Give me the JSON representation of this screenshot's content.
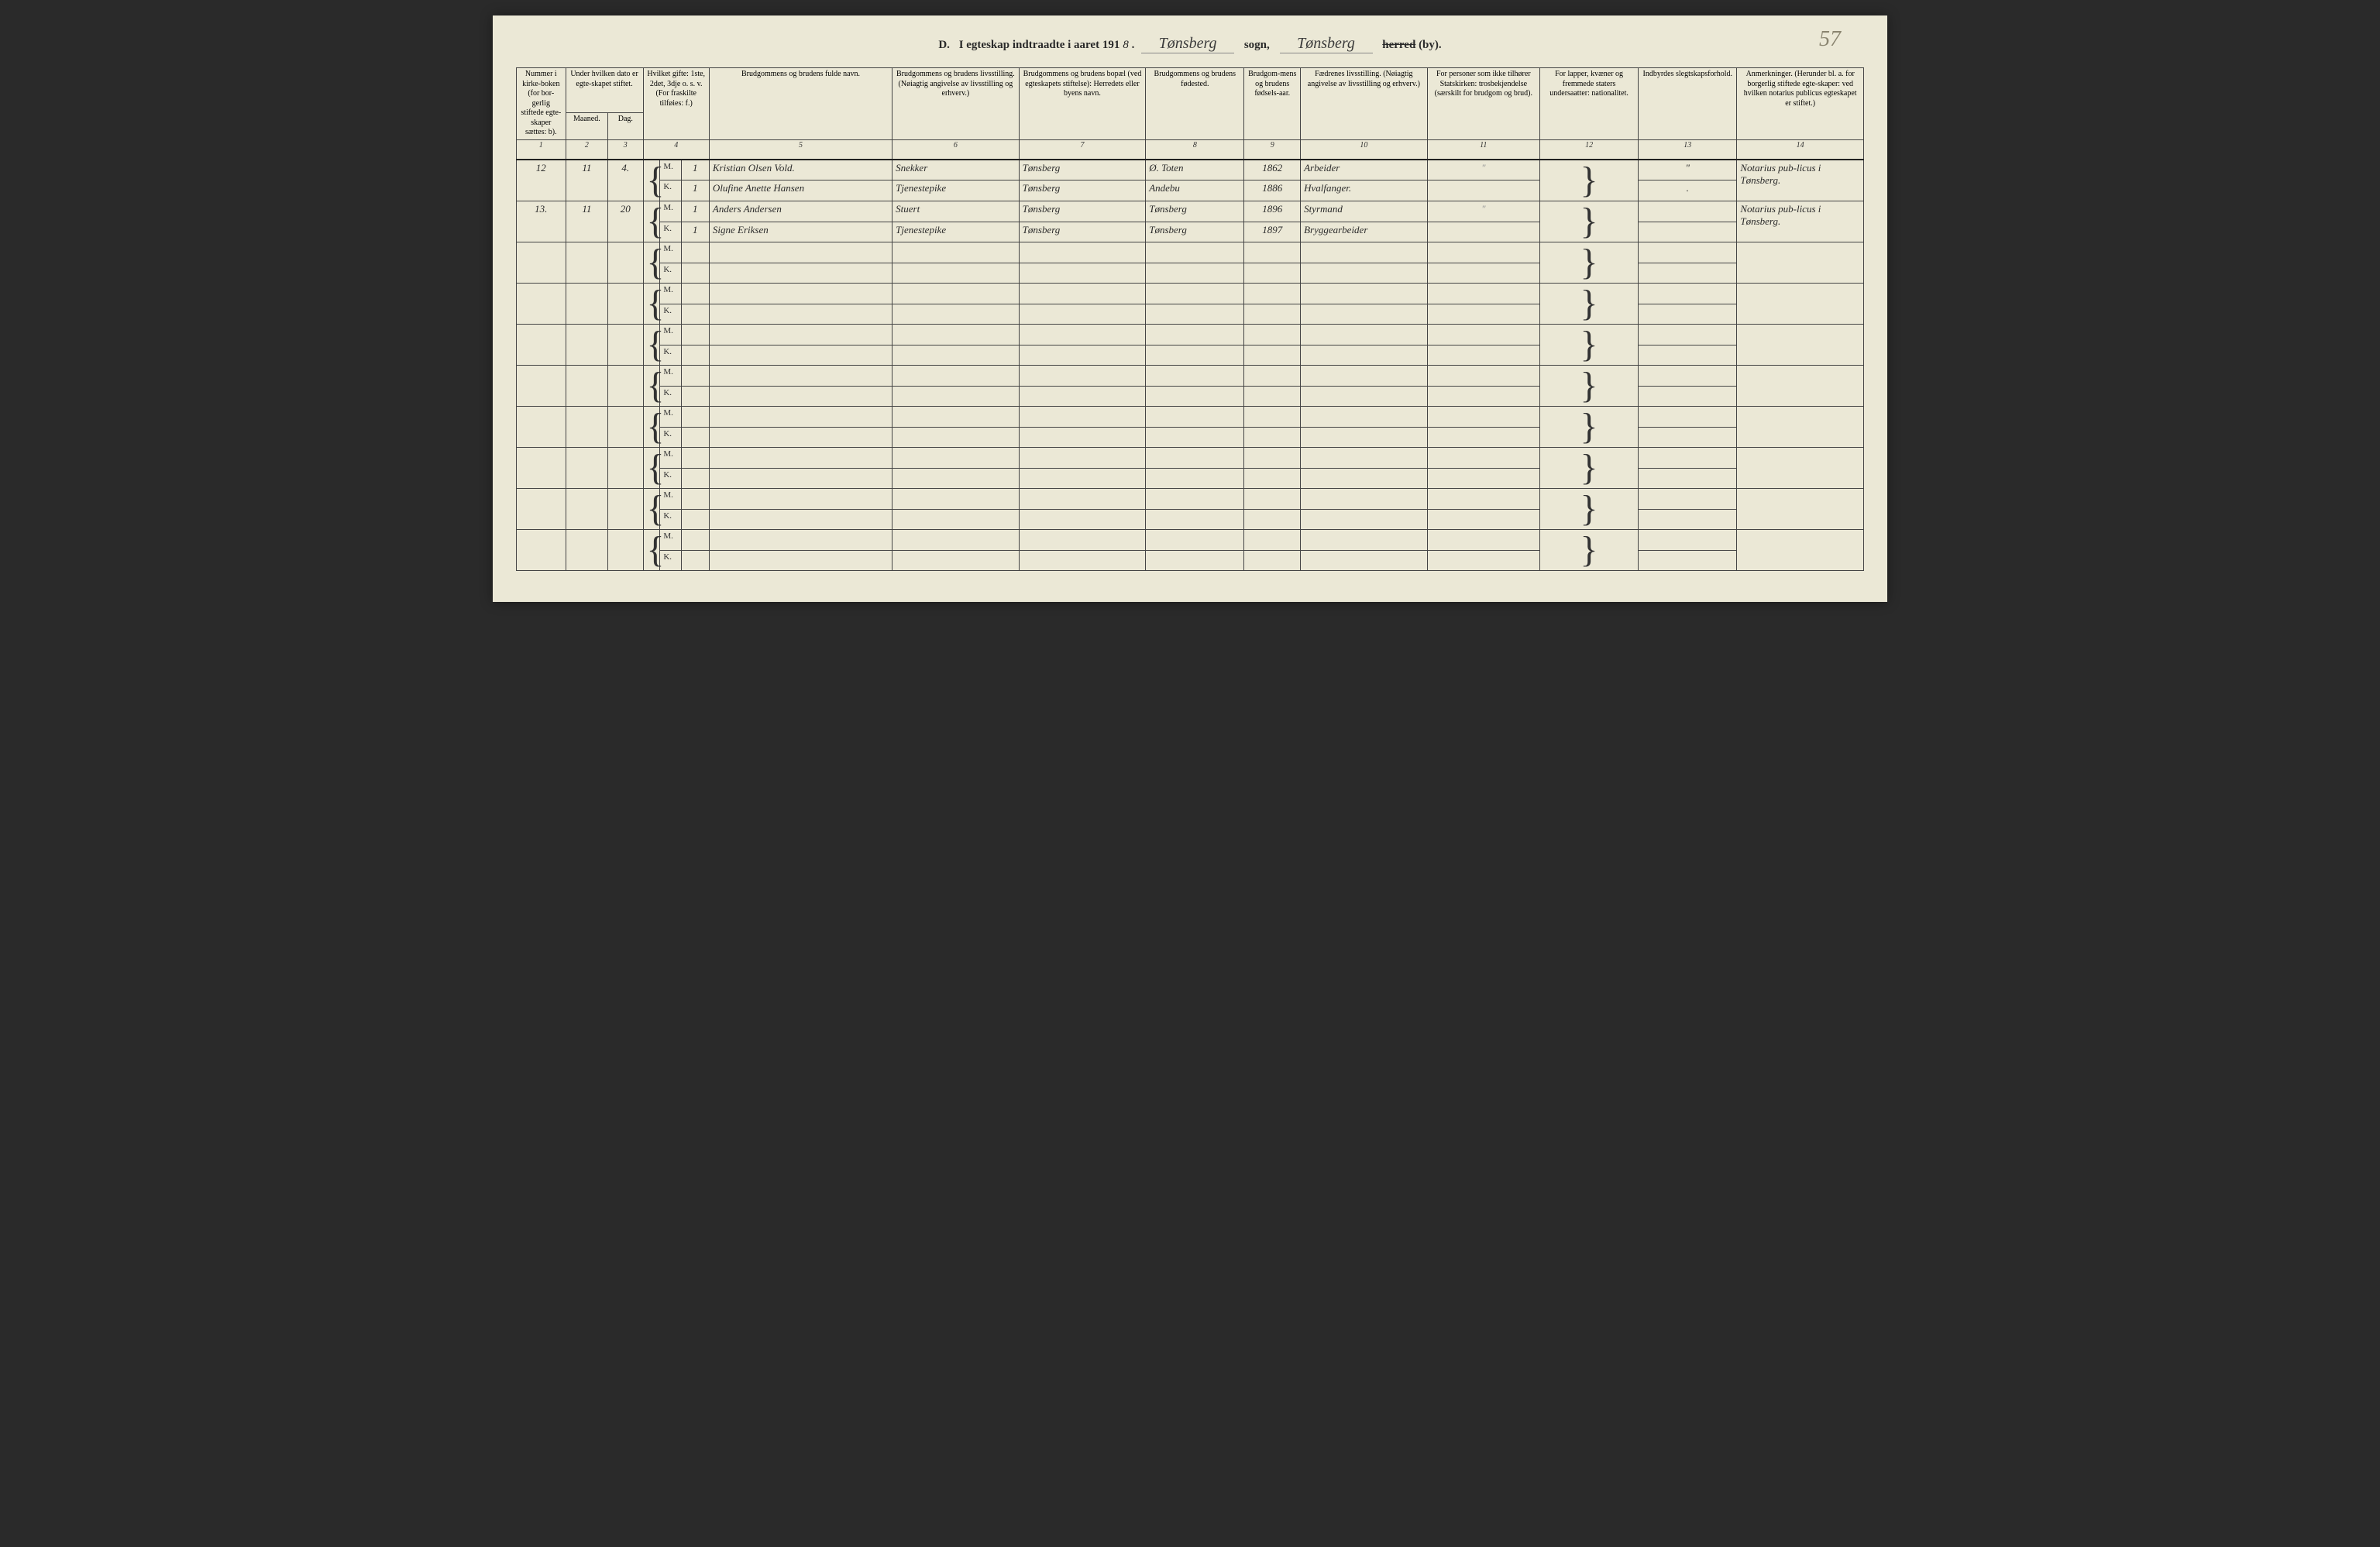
{
  "page_number_handwritten": "57",
  "header": {
    "section": "D.",
    "title_prefix": "I egteskap indtraadte i aaret 191",
    "year_digit": "8",
    "parish_value": "Tønsberg",
    "label_sogn": "sogn,",
    "district_value": "Tønsberg",
    "label_herred": "herred",
    "label_by": "(by)."
  },
  "columns": {
    "c1": "Nummer i kirke-boken (for bor-gerlig stiftede egte-skaper sættes: b).",
    "c2_3_group": "Under hvilken dato er egte-skapet stiftet.",
    "c2": "Maaned.",
    "c3": "Dag.",
    "c4": "Hvilket gifte: 1ste, 2det, 3dje o. s. v. (For fraskilte tilføies: f.)",
    "c5": "Brudgommens og brudens fulde navn.",
    "c6": "Brudgommens og brudens livsstilling. (Nøiagtig angivelse av livsstilling og erhverv.)",
    "c7": "Brudgommens og brudens bopæl (ved egteskapets stiftelse): Herredets eller byens navn.",
    "c8": "Brudgommens og brudens fødested.",
    "c9": "Brudgom-mens og brudens fødsels-aar.",
    "c10": "Fædrenes livsstilling. (Nøiagtig angivelse av livsstilling og erhverv.)",
    "c11": "For personer som ikke tilhører Statskirken: trosbekjendelse (særskilt for brudgom og brud).",
    "c12": "For lapper, kvæner og fremmede staters undersaatter: nationalitet.",
    "c13": "Indbyrdes slegtskapsforhold.",
    "c14": "Anmerkninger. (Herunder bl. a. for borgerlig stiftede egte-skaper: ved hvilken notarius publicus egteskapet er stiftet.)"
  },
  "colnums": [
    "1",
    "2",
    "3",
    "4",
    "5",
    "6",
    "7",
    "8",
    "9",
    "10",
    "11",
    "12",
    "13",
    "14"
  ],
  "mk": {
    "m": "M.",
    "k": "K."
  },
  "entries": [
    {
      "num": "12",
      "month": "11",
      "day": "4.",
      "groom": {
        "gifte": "1",
        "name": "Kristian Olsen Vold.",
        "occupation": "Snekker",
        "residence": "Tønsberg",
        "birthplace": "Ø. Toten",
        "birthyear": "1862",
        "father_occ": "Arbeider",
        "religion": "\"",
        "kin": "\""
      },
      "bride": {
        "gifte": "1",
        "name": "Olufine Anette Hansen",
        "occupation": "Tjenestepike",
        "residence": "Tønsberg",
        "birthplace": "Andebu",
        "birthyear": "1886",
        "father_occ": "Hvalfanger.",
        "religion": "",
        "kin": "."
      },
      "note": "Notarius pub-licus i Tønsberg."
    },
    {
      "num": "13.",
      "month": "11",
      "day": "20",
      "groom": {
        "gifte": "1",
        "name": "Anders Andersen",
        "occupation": "Stuert",
        "residence": "Tønsberg",
        "birthplace": "Tønsberg",
        "birthyear": "1896",
        "father_occ": "Styrmand",
        "religion": "\"",
        "kin": ""
      },
      "bride": {
        "gifte": "1",
        "name": "Signe Eriksen",
        "occupation": "Tjenestepike",
        "residence": "Tønsberg",
        "birthplace": "Tønsberg",
        "birthyear": "1897",
        "father_occ": "Bryggearbeider",
        "religion": "",
        "kin": ""
      },
      "note": "Notarius pub-licus i Tønsberg."
    }
  ],
  "empty_rows": 8,
  "style": {
    "paper_color": "#ebe8d6",
    "ink_color": "#2a2a2a",
    "rule_color": "#444",
    "heavy_rule": "#222",
    "faint_color": "#999"
  }
}
